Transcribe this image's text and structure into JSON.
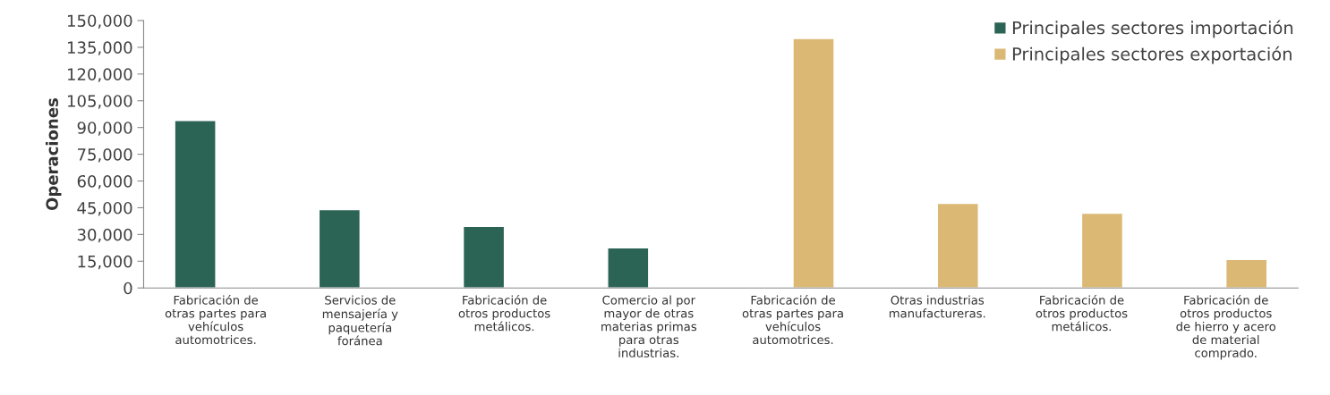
{
  "chart_data": {
    "type": "bar",
    "ylabel": "Operaciones",
    "categories": [
      "Fabricación de otras partes para vehículos automotrices.",
      "Servicios de mensajería y paquetería foránea",
      "Fabricación de otros productos metálicos.",
      "Comercio al por mayor de otras materias primas para otras industrias.",
      "Fabricación de otras partes para vehículos automotrices.",
      "Otras industrias manufactureras.",
      "Fabricación de otros productos metálicos.",
      "Fabricación de otros productos de hierro y acero de material comprado."
    ],
    "series": [
      {
        "name": "Principales sectores importación",
        "color": "#2b6355",
        "values": [
          94000,
          44000,
          34500,
          22500,
          null,
          null,
          null,
          null
        ]
      },
      {
        "name": "Principales sectores exportación",
        "color": "#dbb874",
        "values": [
          null,
          null,
          null,
          null,
          140000,
          47500,
          42000,
          16000
        ]
      }
    ],
    "ylim": [
      0,
      150000
    ],
    "yticks": [
      {
        "value": 0,
        "label": "0"
      },
      {
        "value": 15000,
        "label": "15,000"
      },
      {
        "value": 30000,
        "label": "30,000"
      },
      {
        "value": 45000,
        "label": "45,000"
      },
      {
        "value": 60000,
        "label": "60,000"
      },
      {
        "value": 75000,
        "label": "75,000"
      },
      {
        "value": 90000,
        "label": "90,000"
      },
      {
        "value": 105000,
        "label": "105,000"
      },
      {
        "value": 120000,
        "label": "120,000"
      },
      {
        "value": 135000,
        "label": "135,000"
      },
      {
        "value": 150000,
        "label": "150,000"
      }
    ],
    "grid": false,
    "legend": "top right"
  }
}
